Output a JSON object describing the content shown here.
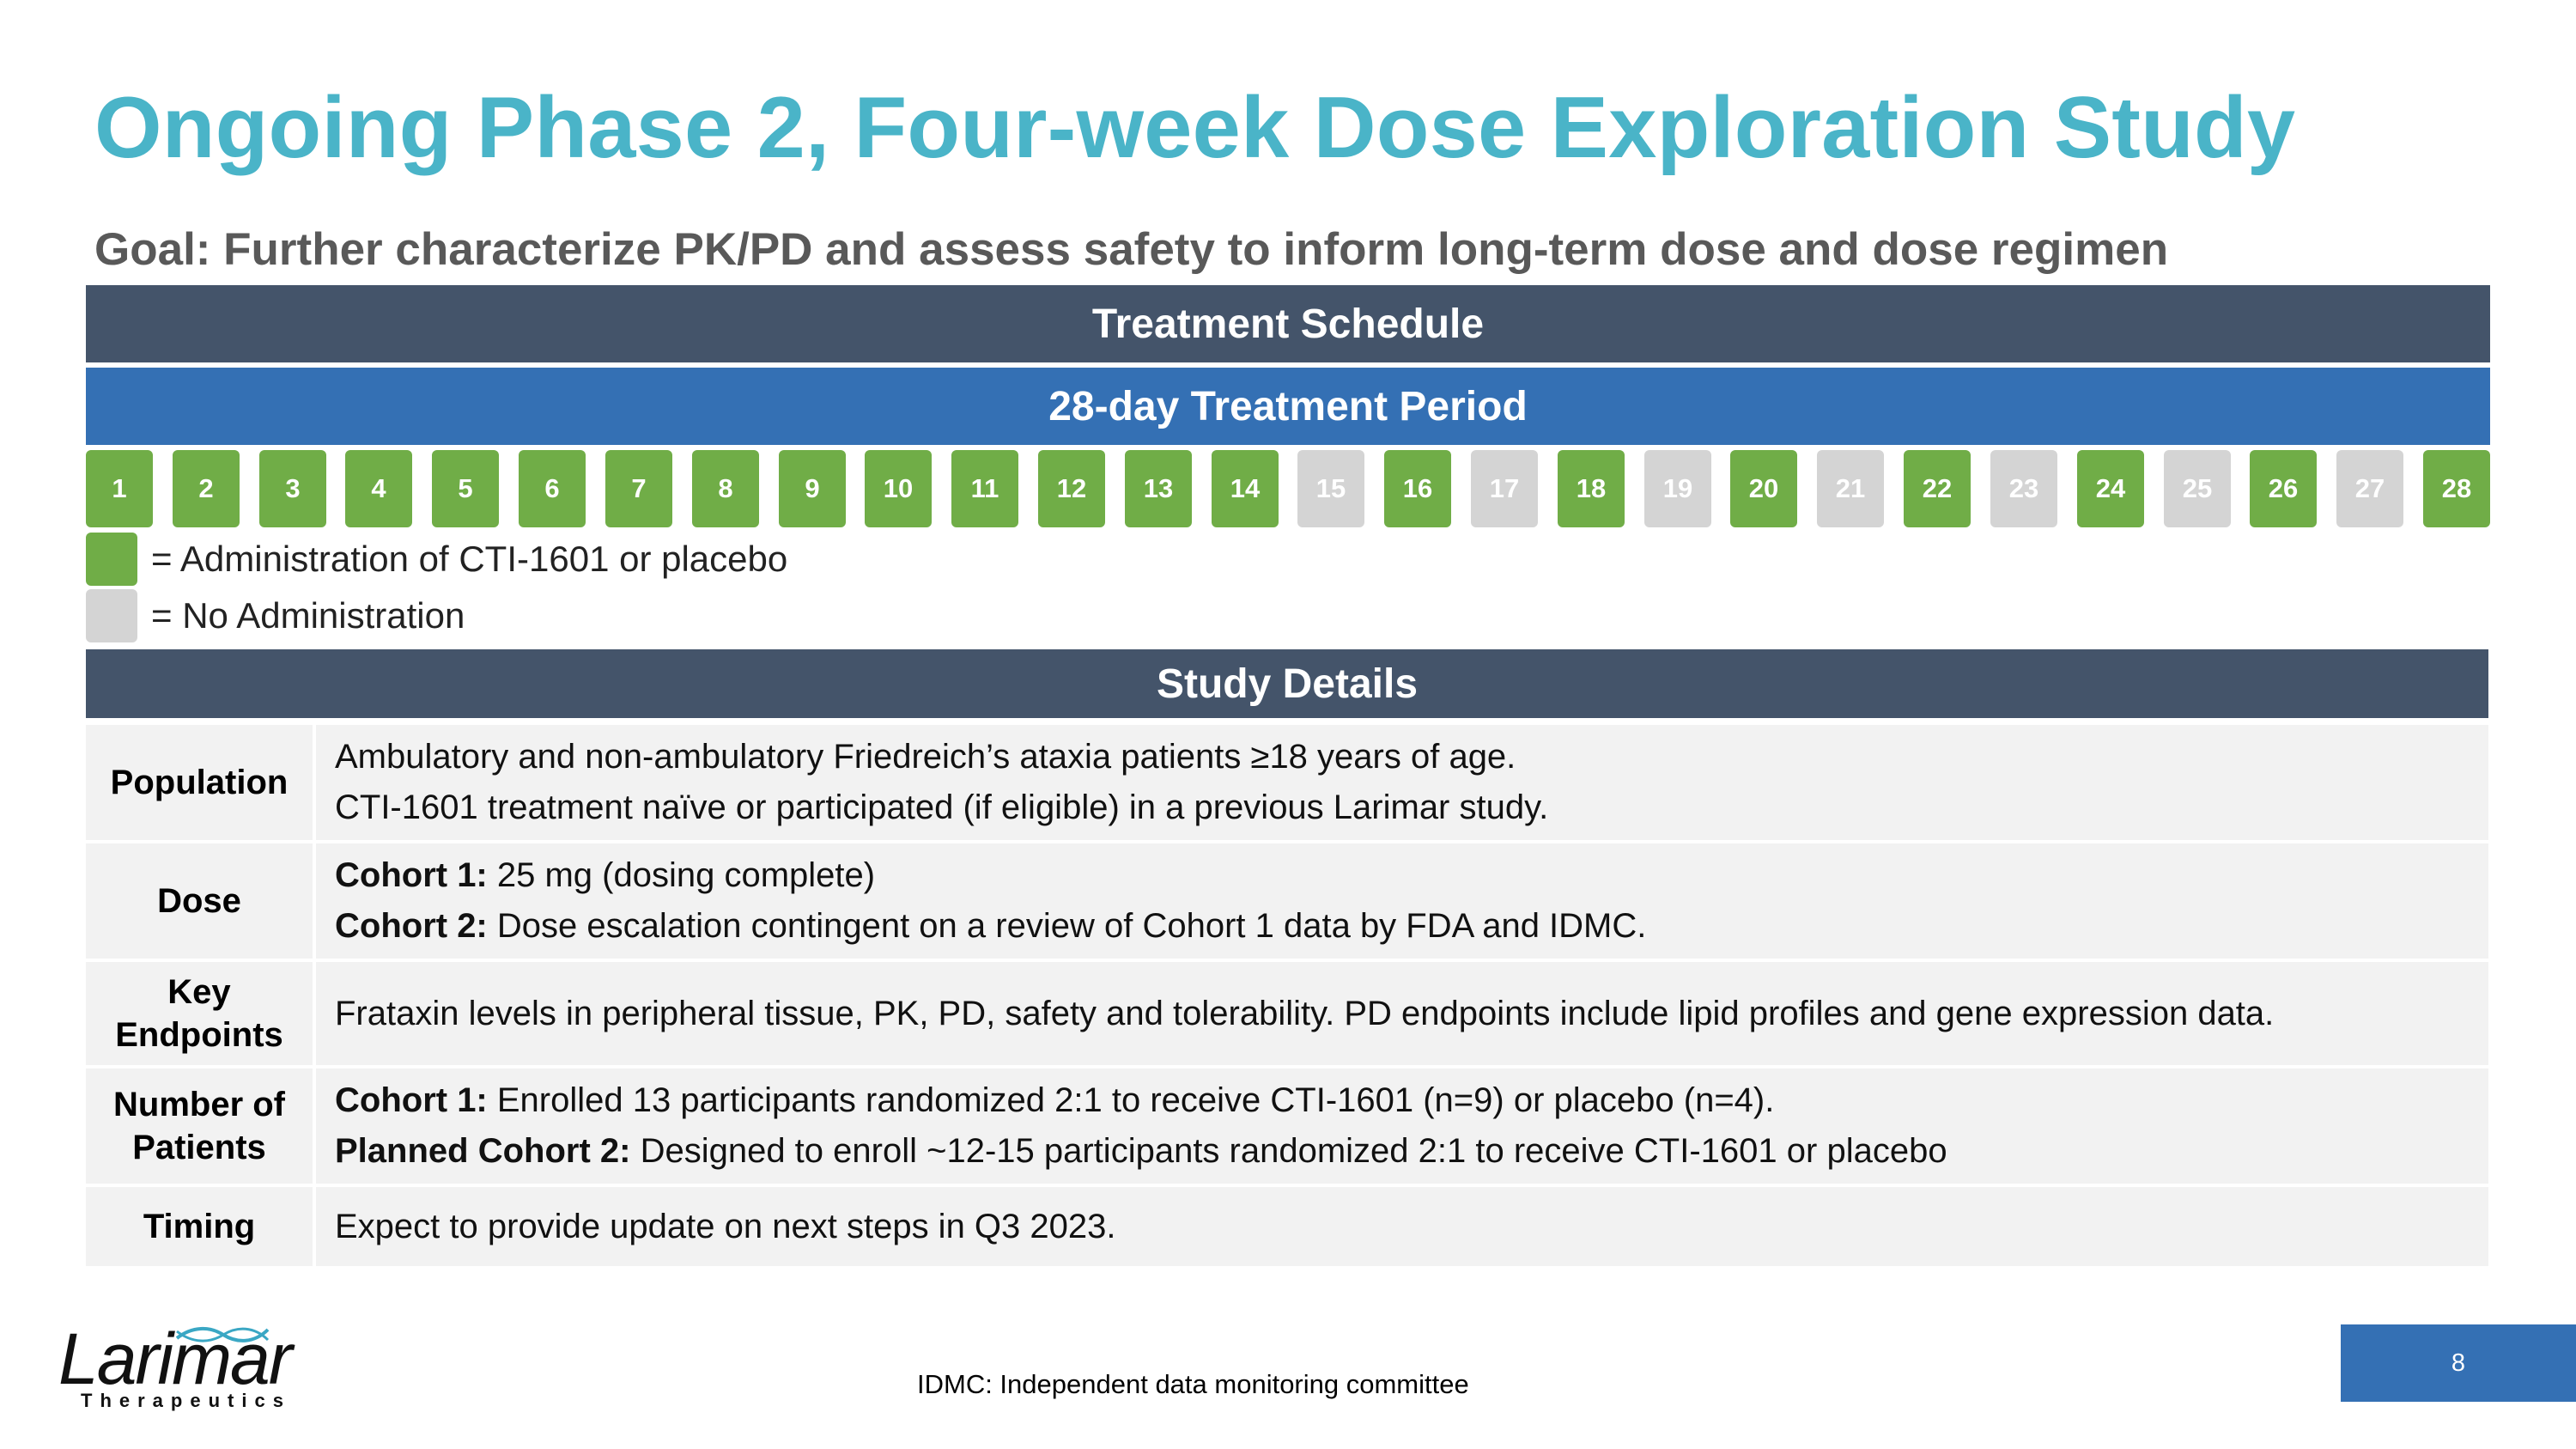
{
  "title": "Ongoing Phase 2, Four-week Dose Exploration Study",
  "goal": "Goal: Further characterize PK/PD and assess safety to inform long-term dose and dose regimen",
  "treatment_schedule": {
    "header": "Treatment Schedule",
    "period_label": "28-day Treatment Period",
    "days": [
      {
        "label": "1",
        "status": "admin"
      },
      {
        "label": "2",
        "status": "admin"
      },
      {
        "label": "3",
        "status": "admin"
      },
      {
        "label": "4",
        "status": "admin"
      },
      {
        "label": "5",
        "status": "admin"
      },
      {
        "label": "6",
        "status": "admin"
      },
      {
        "label": "7",
        "status": "admin"
      },
      {
        "label": "8",
        "status": "admin"
      },
      {
        "label": "9",
        "status": "admin"
      },
      {
        "label": "10",
        "status": "admin"
      },
      {
        "label": "11",
        "status": "admin"
      },
      {
        "label": "12",
        "status": "admin"
      },
      {
        "label": "13",
        "status": "admin"
      },
      {
        "label": "14",
        "status": "admin"
      },
      {
        "label": "15",
        "status": "none"
      },
      {
        "label": "16",
        "status": "admin"
      },
      {
        "label": "17",
        "status": "none"
      },
      {
        "label": "18",
        "status": "admin"
      },
      {
        "label": "19",
        "status": "none"
      },
      {
        "label": "20",
        "status": "admin"
      },
      {
        "label": "21",
        "status": "none"
      },
      {
        "label": "22",
        "status": "admin"
      },
      {
        "label": "23",
        "status": "none"
      },
      {
        "label": "24",
        "status": "admin"
      },
      {
        "label": "25",
        "status": "none"
      },
      {
        "label": "26",
        "status": "admin"
      },
      {
        "label": "27",
        "status": "none"
      },
      {
        "label": "28",
        "status": "admin"
      }
    ],
    "legend": {
      "admin": "= Administration of CTI-1601 or placebo",
      "none": "= No Administration"
    },
    "colors": {
      "admin": "#70ad47",
      "none": "#d4d4d4"
    }
  },
  "study_details": {
    "header": "Study Details",
    "rows": [
      {
        "name": "population",
        "label": "Population",
        "lines": [
          {
            "bold": "",
            "text": "Ambulatory and non-ambulatory Friedreich’s ataxia patients ≥18 years of age."
          },
          {
            "bold": "",
            "text": "CTI-1601 treatment naïve or participated (if eligible) in a previous Larimar study."
          }
        ]
      },
      {
        "name": "dose",
        "label": "Dose",
        "lines": [
          {
            "bold": "Cohort 1:",
            "text": " 25 mg (dosing complete)"
          },
          {
            "bold": "Cohort 2:",
            "text": " Dose escalation contingent on a review of Cohort 1 data by FDA and IDMC."
          }
        ]
      },
      {
        "name": "key-endpoints",
        "label": "Key Endpoints",
        "lines": [
          {
            "bold": "",
            "text": "Frataxin levels in peripheral tissue, PK, PD, safety and tolerability. PD endpoints include lipid profiles and gene expression data."
          }
        ]
      },
      {
        "name": "number-of-patients",
        "label": "Number of Patients",
        "lines": [
          {
            "bold": "Cohort 1:",
            "text": " Enrolled 13 participants randomized 2:1 to receive CTI-1601 (n=9) or placebo (n=4)."
          },
          {
            "bold": "Planned Cohort 2:",
            "text": " Designed to enroll ~12-15 participants randomized 2:1 to receive CTI-1601 or placebo"
          }
        ]
      },
      {
        "name": "timing",
        "label": "Timing",
        "lines": [
          {
            "bold": "",
            "text": "Expect to provide update on next steps in Q3 2023."
          }
        ]
      }
    ]
  },
  "footnote": "IDMC: Independent data monitoring committee",
  "page_number": "8",
  "logo": {
    "word": "Larimar",
    "sub": "Therapeutics",
    "icon": "helix-icon"
  },
  "brand_colors": {
    "title": "#4ab4c8",
    "dark_band": "#44546a",
    "blue_band": "#3470b4"
  }
}
